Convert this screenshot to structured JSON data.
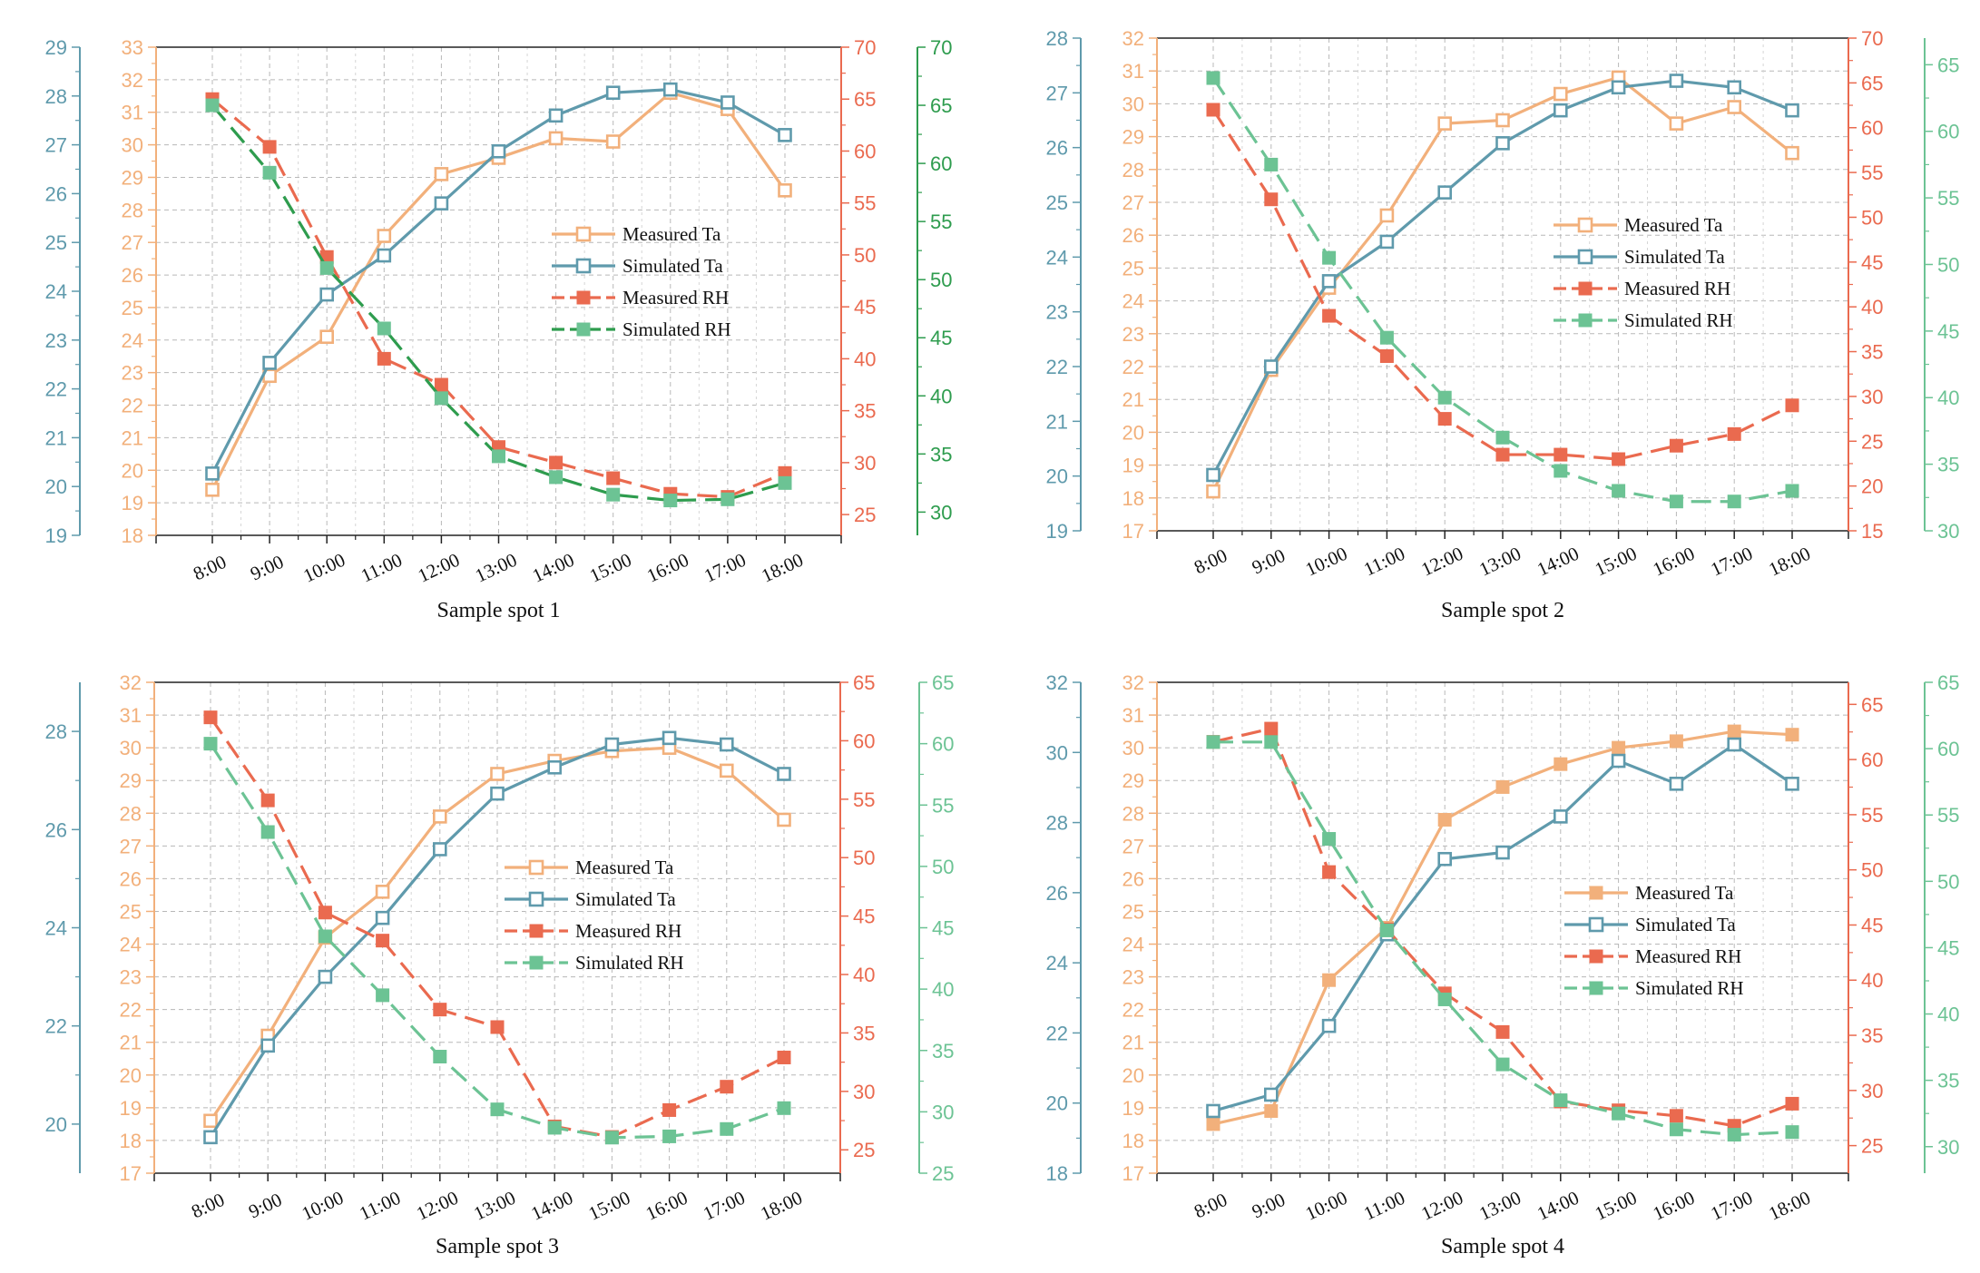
{
  "figure": {
    "type": "multi-panel line chart",
    "colors": {
      "measured_ta": "#F2B07B",
      "simulated_ta": "#5F9AAC",
      "measured_rh": "#EA6A4F",
      "simulated_rh_green": "#2E9C4E",
      "simulated_rh_mint": "#6CC394",
      "ta_left_axis": "#F2B07B",
      "ta_outer_axis": "#5F9AAC",
      "grid": "#B8B8B8",
      "frame": "#222222"
    }
  },
  "chart_data": [
    {
      "type": "line",
      "title": "Sample spot 1",
      "xlabel": "Sample spot 1",
      "categories": [
        "8:00",
        "9:00",
        "10:00",
        "11:00",
        "12:00",
        "13:00",
        "14:00",
        "15:00",
        "16:00",
        "17:00",
        "18:00"
      ],
      "axes": {
        "ta_outer": {
          "range": [
            19,
            29
          ],
          "ticks": [
            19,
            20,
            21,
            22,
            23,
            24,
            25,
            26,
            27,
            28,
            29
          ],
          "color": "#5F9AAC"
        },
        "ta_inner": {
          "range": [
            18,
            33
          ],
          "ticks": [
            18,
            19,
            20,
            21,
            22,
            23,
            24,
            25,
            26,
            27,
            28,
            29,
            30,
            31,
            32,
            33
          ],
          "color": "#F2B07B"
        },
        "rh_measured": {
          "range": [
            23,
            70
          ],
          "ticks": [
            25,
            30,
            35,
            40,
            45,
            50,
            55,
            60,
            65,
            70
          ],
          "color": "#EA6A4F"
        },
        "rh_simulated": {
          "range": [
            28,
            70
          ],
          "ticks": [
            30,
            35,
            40,
            45,
            50,
            55,
            60,
            65,
            70
          ],
          "color": "#2E9C4E"
        }
      },
      "series": [
        {
          "name": "Measured Ta",
          "axis": "ta_inner",
          "marker": "open",
          "dash": false,
          "color": "#F2B07B",
          "values": [
            19.4,
            22.9,
            24.1,
            27.2,
            29.1,
            29.6,
            30.2,
            30.1,
            31.6,
            31.1,
            28.6
          ]
        },
        {
          "name": "Simulated Ta",
          "axis": "ta_inner",
          "marker": "open",
          "dash": false,
          "color": "#5F9AAC",
          "values": [
            19.9,
            23.3,
            25.4,
            26.6,
            28.2,
            29.8,
            30.9,
            31.6,
            31.7,
            31.3,
            30.3
          ]
        },
        {
          "name": "Measured RH",
          "axis": "rh_measured",
          "marker": "filled",
          "dash": true,
          "color": "#EA6A4F",
          "values": [
            65.0,
            60.4,
            49.8,
            40.0,
            37.5,
            31.5,
            30.0,
            28.5,
            27.0,
            26.7,
            29.0
          ]
        },
        {
          "name": "Simulated RH",
          "axis": "rh_simulated",
          "marker": "filled",
          "dash": true,
          "color": "#2E9C4E",
          "legend_color": "#6CC394",
          "marker_color": "#6CC394",
          "values": [
            65.0,
            59.2,
            51.0,
            45.8,
            39.8,
            34.8,
            33.0,
            31.5,
            31.0,
            31.1,
            32.5
          ]
        }
      ],
      "legend": {
        "placement": "center-right",
        "entries": [
          "Measured Ta",
          "Simulated Ta",
          "Measured RH",
          "Simulated RH"
        ]
      }
    },
    {
      "type": "line",
      "title": "Sample spot 2",
      "xlabel": "Sample spot 2",
      "categories": [
        "8:00",
        "9:00",
        "10:00",
        "11:00",
        "12:00",
        "13:00",
        "14:00",
        "15:00",
        "16:00",
        "17:00",
        "18:00"
      ],
      "axes": {
        "ta_outer": {
          "range": [
            19,
            28
          ],
          "ticks": [
            19,
            20,
            21,
            22,
            23,
            24,
            25,
            26,
            27,
            28
          ],
          "color": "#5F9AAC"
        },
        "ta_inner": {
          "range": [
            17,
            32
          ],
          "ticks": [
            17,
            18,
            19,
            20,
            21,
            22,
            23,
            24,
            25,
            26,
            27,
            28,
            29,
            30,
            31,
            32
          ],
          "color": "#F2B07B"
        },
        "rh_measured": {
          "range": [
            15,
            70
          ],
          "ticks": [
            15,
            20,
            25,
            30,
            35,
            40,
            45,
            50,
            55,
            60,
            65,
            70
          ],
          "color": "#EA6A4F"
        },
        "rh_simulated": {
          "range": [
            30,
            67
          ],
          "ticks": [
            30,
            35,
            40,
            45,
            50,
            55,
            60,
            65
          ],
          "color": "#6CC394"
        }
      },
      "series": [
        {
          "name": "Measured Ta",
          "axis": "ta_inner",
          "marker": "open",
          "dash": false,
          "color": "#F2B07B",
          "values": [
            18.2,
            21.9,
            24.4,
            26.6,
            29.4,
            29.5,
            30.3,
            30.8,
            29.4,
            29.9,
            28.5
          ]
        },
        {
          "name": "Simulated Ta",
          "axis": "ta_inner",
          "marker": "open",
          "dash": false,
          "color": "#5F9AAC",
          "values": [
            18.7,
            22.0,
            24.6,
            25.8,
            27.3,
            28.8,
            29.8,
            30.5,
            30.7,
            30.5,
            29.8
          ]
        },
        {
          "name": "Measured RH",
          "axis": "rh_measured",
          "marker": "filled",
          "dash": true,
          "color": "#EA6A4F",
          "values": [
            62.0,
            52.0,
            39.0,
            34.5,
            27.5,
            23.5,
            23.5,
            23.0,
            24.5,
            25.8,
            29.0
          ]
        },
        {
          "name": "Simulated RH",
          "axis": "rh_simulated",
          "marker": "filled",
          "dash": true,
          "color": "#6CC394",
          "values": [
            64.0,
            57.5,
            50.5,
            44.5,
            40.0,
            37.0,
            34.5,
            33.0,
            32.2,
            32.2,
            33.0
          ]
        }
      ],
      "legend": {
        "placement": "center-right",
        "entries": [
          "Measured Ta",
          "Simulated Ta",
          "Measured RH",
          "Simulated RH"
        ]
      }
    },
    {
      "type": "line",
      "title": "Sample spot 3",
      "xlabel": "Sample spot 3",
      "categories": [
        "8:00",
        "9:00",
        "10:00",
        "11:00",
        "12:00",
        "13:00",
        "14:00",
        "15:00",
        "16:00",
        "17:00",
        "18:00"
      ],
      "axes": {
        "ta_outer": {
          "range": [
            19.0,
            29.0
          ],
          "ticks": [
            20,
            22,
            24,
            26,
            28
          ],
          "color": "#5F9AAC"
        },
        "ta_inner": {
          "range": [
            17,
            32
          ],
          "ticks": [
            17,
            18,
            19,
            20,
            21,
            22,
            23,
            24,
            25,
            26,
            27,
            28,
            29,
            30,
            31,
            32
          ],
          "color": "#F2B07B"
        },
        "rh_measured": {
          "range": [
            23,
            65
          ],
          "ticks": [
            25,
            30,
            35,
            40,
            45,
            50,
            55,
            60,
            65
          ],
          "color": "#EA6A4F"
        },
        "rh_simulated": {
          "range": [
            25,
            65
          ],
          "ticks": [
            25,
            30,
            35,
            40,
            45,
            50,
            55,
            60,
            65
          ],
          "color": "#6CC394"
        }
      },
      "series": [
        {
          "name": "Measured Ta",
          "axis": "ta_inner",
          "marker": "open",
          "dash": false,
          "color": "#F2B07B",
          "values": [
            18.6,
            21.2,
            24.2,
            25.6,
            27.9,
            29.2,
            29.6,
            29.9,
            30.0,
            29.3,
            27.8
          ]
        },
        {
          "name": "Simulated Ta",
          "axis": "ta_inner",
          "marker": "open",
          "dash": false,
          "color": "#5F9AAC",
          "values": [
            18.1,
            20.9,
            23.0,
            24.8,
            26.9,
            28.6,
            29.4,
            30.1,
            30.3,
            30.1,
            29.2
          ]
        },
        {
          "name": "Measured RH",
          "axis": "rh_measured",
          "marker": "filled",
          "dash": true,
          "color": "#EA6A4F",
          "values": [
            62.0,
            54.9,
            45.3,
            42.9,
            37.0,
            35.5,
            27.0,
            26.1,
            28.4,
            30.4,
            32.9
          ]
        },
        {
          "name": "Simulated RH",
          "axis": "rh_simulated",
          "marker": "filled",
          "dash": true,
          "color": "#6CC394",
          "values": [
            60.0,
            52.8,
            44.3,
            39.5,
            34.5,
            30.2,
            28.7,
            27.9,
            28.0,
            28.6,
            30.3
          ]
        }
      ],
      "legend": {
        "placement": "center-left",
        "entries": [
          "Measured Ta",
          "Simulated Ta",
          "Measured RH",
          "Simulated RH"
        ]
      }
    },
    {
      "type": "line",
      "title": "Sample spot 4",
      "xlabel": "Sample spot 4",
      "categories": [
        "8:00",
        "9:00",
        "10:00",
        "11:00",
        "12:00",
        "13:00",
        "14:00",
        "15:00",
        "16:00",
        "17:00",
        "18:00"
      ],
      "axes": {
        "ta_outer": {
          "range": [
            18,
            32
          ],
          "ticks": [
            18,
            20,
            22,
            24,
            26,
            28,
            30,
            32
          ],
          "color": "#5F9AAC"
        },
        "ta_inner": {
          "range": [
            17,
            32
          ],
          "ticks": [
            17,
            18,
            19,
            20,
            21,
            22,
            23,
            24,
            25,
            26,
            27,
            28,
            29,
            30,
            31,
            32
          ],
          "color": "#F2B07B"
        },
        "rh_measured": {
          "range": [
            22.5,
            67
          ],
          "ticks": [
            25,
            30,
            35,
            40,
            45,
            50,
            55,
            60,
            65
          ],
          "color": "#EA6A4F"
        },
        "rh_simulated": {
          "range": [
            28,
            65
          ],
          "ticks": [
            30,
            35,
            40,
            45,
            50,
            55,
            60,
            65
          ],
          "color": "#6CC394"
        }
      },
      "series": [
        {
          "name": "Measured Ta",
          "axis": "ta_inner",
          "marker": "filled",
          "dash": false,
          "color": "#F2B07B",
          "values": [
            18.5,
            18.9,
            22.9,
            24.5,
            27.8,
            28.8,
            29.5,
            30.0,
            30.2,
            30.5,
            30.4
          ]
        },
        {
          "name": "Simulated Ta",
          "axis": "ta_inner",
          "marker": "open",
          "dash": false,
          "color": "#5F9AAC",
          "values": [
            18.9,
            19.4,
            21.5,
            24.3,
            26.6,
            26.8,
            27.9,
            29.6,
            28.9,
            30.1,
            28.9
          ]
        },
        {
          "name": "Measured RH",
          "axis": "rh_measured",
          "marker": "filled",
          "dash": true,
          "color": "#EA6A4F",
          "values": [
            61.6,
            62.8,
            49.8,
            44.6,
            38.8,
            35.3,
            29.0,
            28.2,
            27.7,
            26.8,
            28.8
          ]
        },
        {
          "name": "Simulated RH",
          "axis": "rh_simulated",
          "marker": "filled",
          "dash": true,
          "color": "#6CC394",
          "values": [
            60.5,
            60.5,
            53.2,
            46.3,
            41.1,
            36.2,
            33.5,
            32.5,
            31.3,
            30.9,
            31.1
          ]
        }
      ],
      "legend": {
        "placement": "center-right",
        "entries": [
          "Measured Ta",
          "Simulated Ta",
          "Measured RH",
          "Simulated RH"
        ]
      }
    }
  ]
}
